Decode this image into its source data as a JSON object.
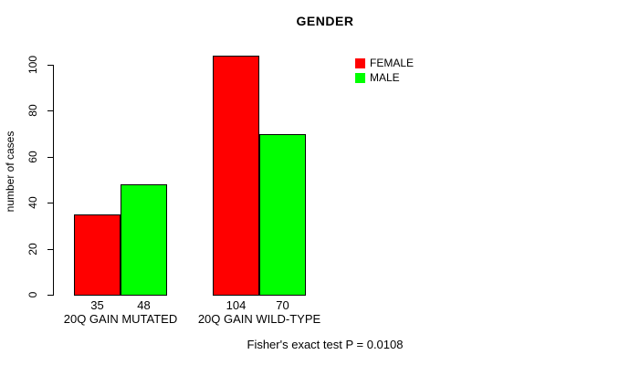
{
  "chart_data": {
    "type": "bar",
    "title": "GENDER",
    "ylabel": "number of cases",
    "xlabel": "",
    "categories": [
      "20Q GAIN MUTATED",
      "20Q GAIN WILD-TYPE"
    ],
    "series": [
      {
        "name": "FEMALE",
        "color": "#ff0000",
        "values": [
          35,
          104
        ]
      },
      {
        "name": "MALE",
        "color": "#00ff00",
        "values": [
          48,
          70
        ]
      }
    ],
    "yticks": [
      0,
      20,
      40,
      60,
      80,
      100
    ],
    "ylim": [
      0,
      104
    ],
    "grid": false,
    "legend_position": "top-right",
    "bar_value_labels": [
      [
        "35",
        "104"
      ],
      [
        "48",
        "70"
      ]
    ],
    "annotation": "Fisher's exact test P = 0.0108",
    "colors": {
      "background": "#ffffff",
      "axis": "#000000",
      "text": "#000000"
    }
  }
}
